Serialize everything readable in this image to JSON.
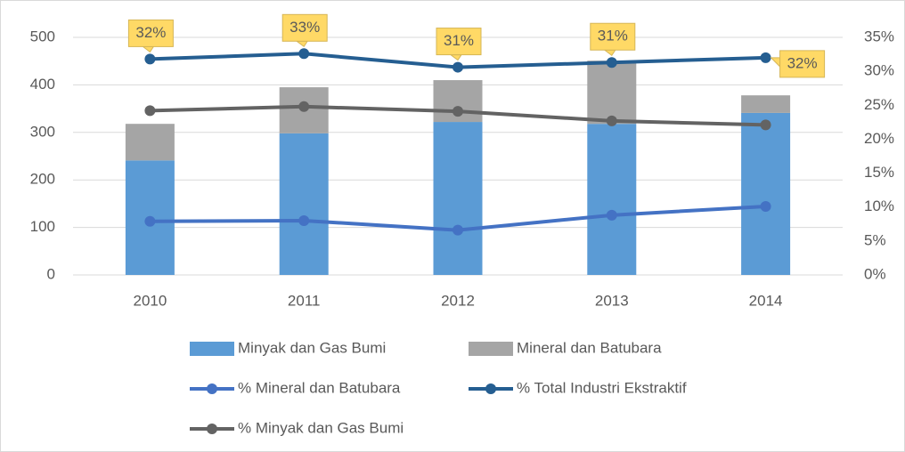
{
  "chart_data": {
    "type": "bar",
    "stacked": true,
    "categories": [
      "2010",
      "2011",
      "2012",
      "2013",
      "2014"
    ],
    "series": [
      {
        "name": "Minyak dan Gas Bumi",
        "type": "bar",
        "color": "#5b9bd5",
        "values": [
          241,
          298,
          322,
          318,
          341
        ]
      },
      {
        "name": "Mineral dan Batubara",
        "type": "bar",
        "color": "#a5a5a5",
        "values": [
          77,
          97,
          88,
          133,
          37
        ]
      },
      {
        "name": "% Mineral dan Batubara",
        "type": "line",
        "axis": "y2",
        "color": "#4472c4",
        "values": [
          7.9,
          8.0,
          6.6,
          8.8,
          10.1
        ]
      },
      {
        "name": "% Total Industri Ekstraktif",
        "type": "line",
        "axis": "y2",
        "color": "#255e91",
        "values": [
          31.8,
          32.6,
          30.6,
          31.3,
          32.0
        ],
        "value_labels": [
          "32%",
          "33%",
          "31%",
          "31%",
          "32%"
        ]
      },
      {
        "name": "% Minyak dan Gas Bumi",
        "type": "line",
        "axis": "y2",
        "color": "#636363",
        "values": [
          24.2,
          24.8,
          24.1,
          22.7,
          22.1
        ]
      }
    ],
    "ylim": [
      0,
      500
    ],
    "yticks": [
      0,
      100,
      200,
      300,
      400,
      500
    ],
    "y2lim": [
      0,
      35
    ],
    "y2ticks": [
      {
        "value": 0,
        "label": "0%"
      },
      {
        "value": 5,
        "label": "5%"
      },
      {
        "value": 10,
        "label": "10%"
      },
      {
        "value": 15,
        "label": "15%"
      },
      {
        "value": 20,
        "label": "20%"
      },
      {
        "value": 25,
        "label": "25%"
      },
      {
        "value": 30,
        "label": "30%"
      },
      {
        "value": 35,
        "label": "35%"
      }
    ],
    "grid": true,
    "legend": "bottom"
  }
}
